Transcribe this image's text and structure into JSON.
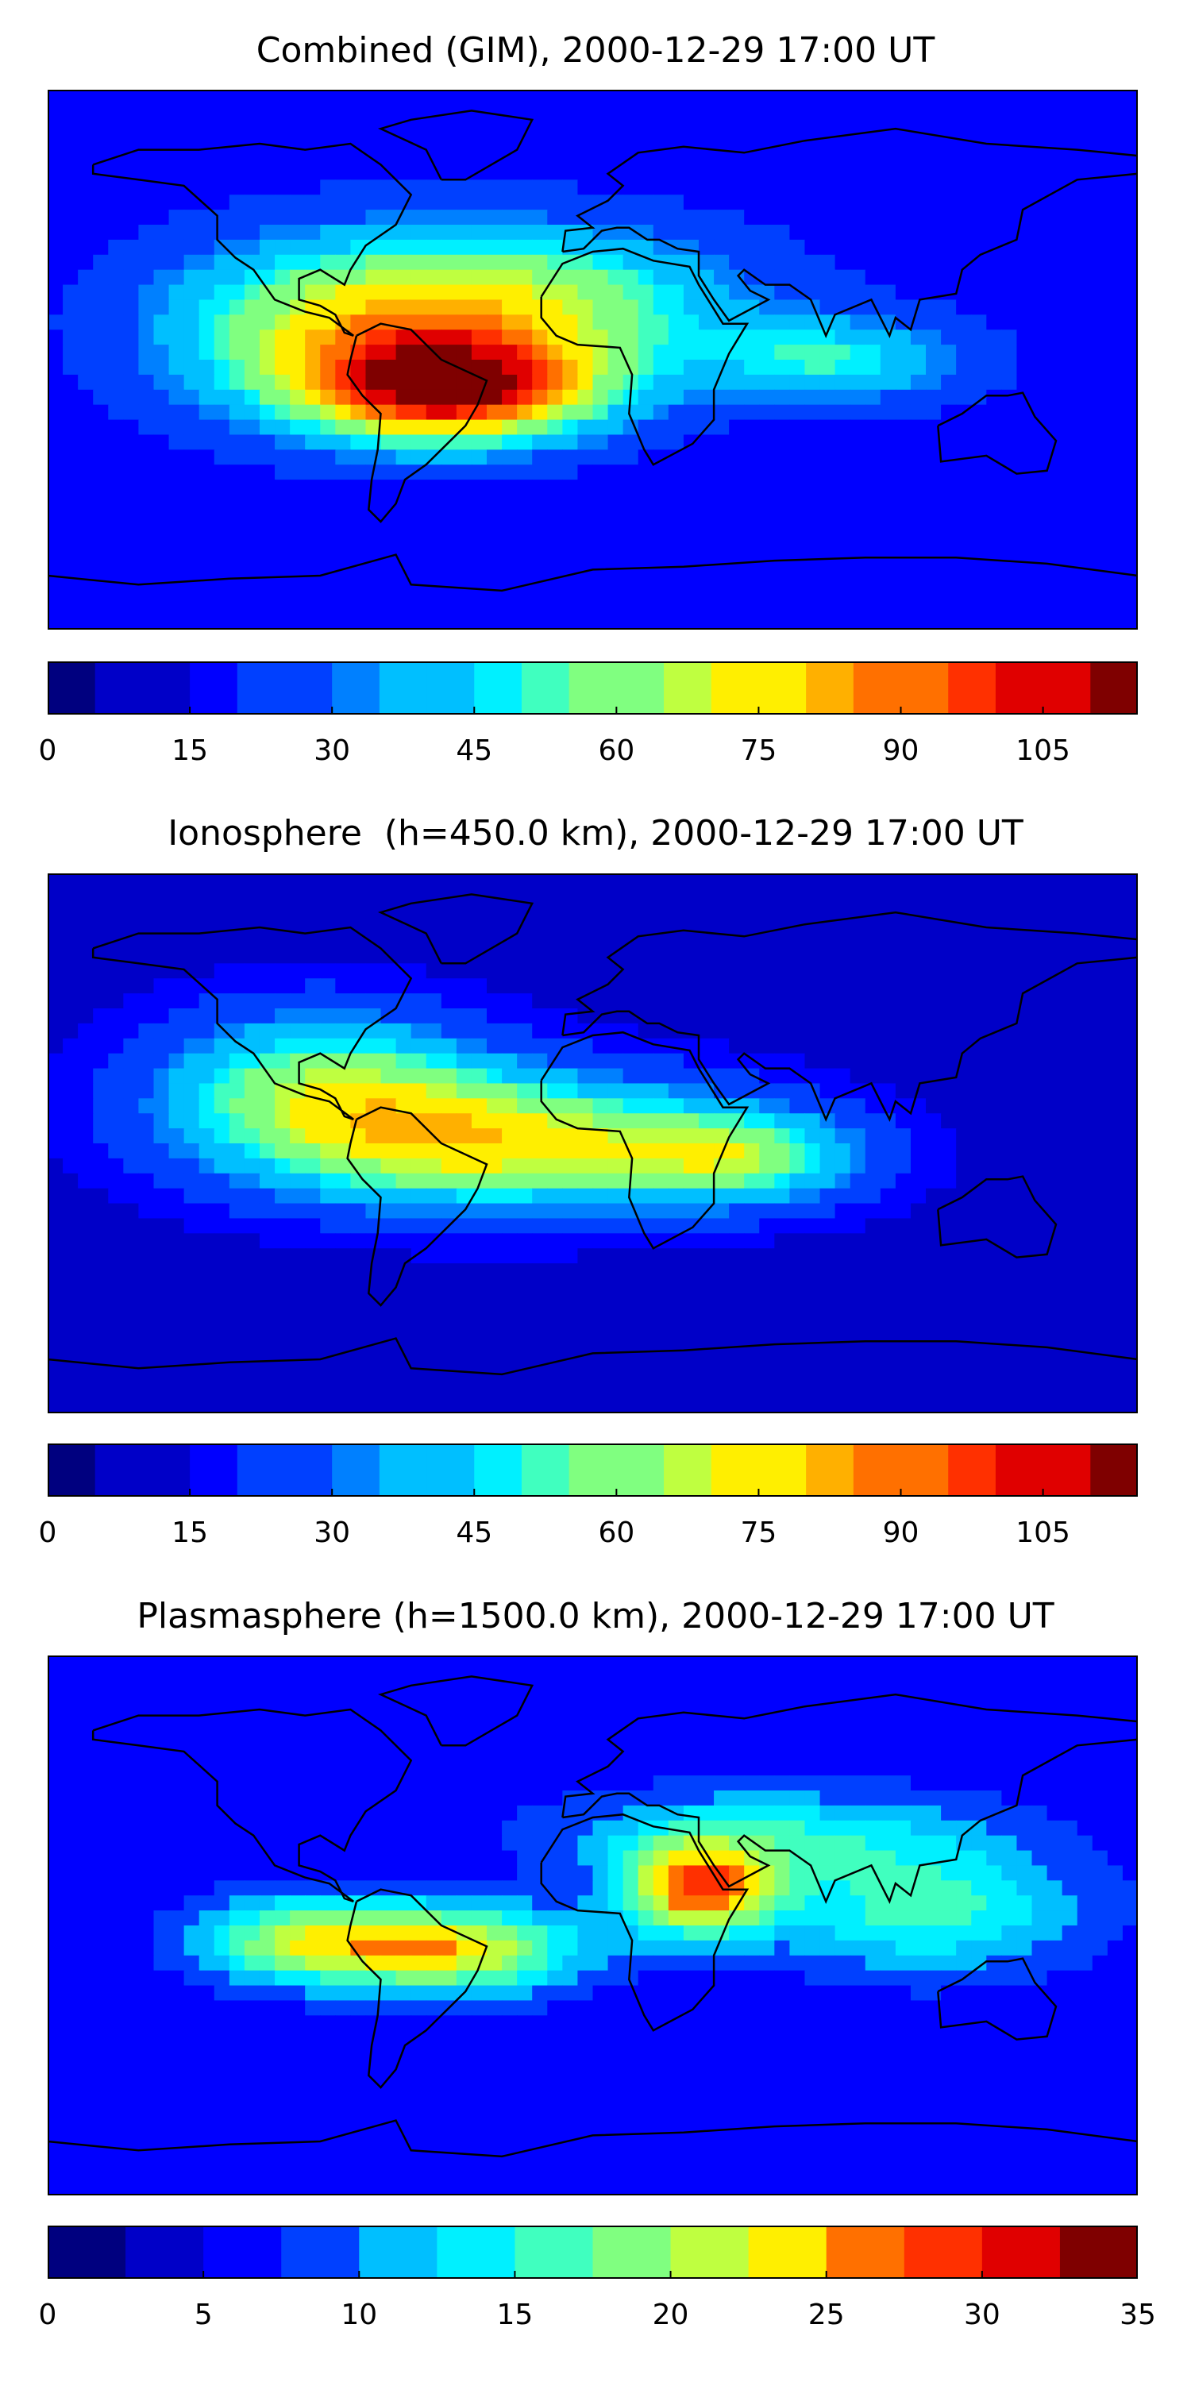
{
  "chart_data": [
    {
      "type": "heatmap",
      "title": "Combined (GIM), 2000-12-29 17:00 UT",
      "colorbar": {
        "min": 0,
        "max": 115,
        "step": 5,
        "ticks": [
          0,
          15,
          30,
          45,
          60,
          75,
          90,
          105
        ]
      },
      "blobs": [
        {
          "lon": -45,
          "lat": -10,
          "value": 100,
          "spread_lon": 50,
          "spread_lat": 18
        },
        {
          "lon": -20,
          "lat": 20,
          "value": 60,
          "spread_lon": 70,
          "spread_lat": 25
        },
        {
          "lon": -90,
          "lat": 10,
          "value": 55,
          "spread_lon": 60,
          "spread_lat": 30
        },
        {
          "lon": 80,
          "lat": 0,
          "value": 48,
          "spread_lon": 45,
          "spread_lat": 15
        }
      ],
      "background_value": 15
    },
    {
      "type": "heatmap",
      "title": "Ionosphere  (h=450.0 km), 2000-12-29 17:00 UT",
      "colorbar": {
        "min": 0,
        "max": 115,
        "step": 5,
        "ticks": [
          0,
          15,
          30,
          45,
          60,
          75,
          90,
          105
        ]
      },
      "blobs": [
        {
          "lon": -30,
          "lat": 0,
          "value": 72,
          "spread_lon": 80,
          "spread_lat": 22
        },
        {
          "lon": -90,
          "lat": 20,
          "value": 55,
          "spread_lon": 55,
          "spread_lat": 25
        },
        {
          "lon": 50,
          "lat": -5,
          "value": 48,
          "spread_lon": 40,
          "spread_lat": 15
        }
      ],
      "background_value": 12
    },
    {
      "type": "heatmap",
      "title": "Plasmasphere (h=1500.0 km), 2000-12-29 17:00 UT",
      "colorbar": {
        "min": 0,
        "max": 35,
        "step": 2.5,
        "ticks": [
          0,
          5,
          10,
          15,
          20,
          25,
          30,
          35
        ]
      },
      "blobs": [
        {
          "lon": 35,
          "lat": 12,
          "value": 27,
          "spread_lon": 25,
          "spread_lat": 15
        },
        {
          "lon": -45,
          "lat": -8,
          "value": 23,
          "spread_lon": 40,
          "spread_lat": 14
        },
        {
          "lon": -95,
          "lat": -5,
          "value": 20,
          "spread_lon": 35,
          "spread_lat": 14
        },
        {
          "lon": 110,
          "lat": 5,
          "value": 16,
          "spread_lon": 50,
          "spread_lat": 20
        },
        {
          "lon": 60,
          "lat": 30,
          "value": 14,
          "spread_lon": 70,
          "spread_lat": 15
        }
      ],
      "background_value": 6
    }
  ],
  "colors": {
    "jet": [
      "#00007f",
      "#0000c8",
      "#0000ff",
      "#0040ff",
      "#0080ff",
      "#00bfff",
      "#00f0ff",
      "#40ffbf",
      "#80ff80",
      "#bfff40",
      "#ffef00",
      "#ffb000",
      "#ff7000",
      "#ff3000",
      "#e00000",
      "#7f0000"
    ]
  }
}
